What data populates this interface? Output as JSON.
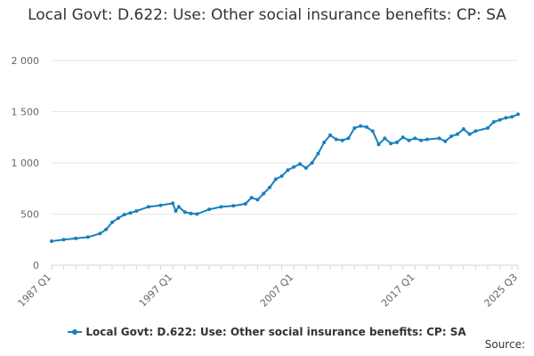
{
  "title": "Local Govt: D.622: Use: Other social insurance benefits: CP: SA",
  "source_label": "Source:",
  "chart_data": {
    "type": "line",
    "title": "Local Govt: D.622: Use: Other social insurance benefits: CP: SA",
    "xlabel": "",
    "ylabel": "",
    "ylim": [
      0,
      2000
    ],
    "y_ticks": [
      0,
      500,
      1000,
      1500,
      2000
    ],
    "y_tick_labels": [
      "0",
      "500",
      "1 000",
      "1 500",
      "2 000"
    ],
    "x_range": [
      "1987 Q1",
      "2025 Q3"
    ],
    "x_tick_labels": [
      "1987 Q1",
      "1997 Q1",
      "2007 Q1",
      "2017 Q1",
      "2025 Q3"
    ],
    "grid": "horizontal",
    "legend_position": "bottom",
    "series": [
      {
        "name": "Local Govt: D.622: Use: Other social insurance benefits: CP: SA",
        "color": "#1780bd",
        "points": [
          [
            "1987 Q1",
            235
          ],
          [
            "1988 Q1",
            250
          ],
          [
            "1989 Q1",
            262
          ],
          [
            "1990 Q1",
            275
          ],
          [
            "1991 Q1",
            310
          ],
          [
            "1991 Q3",
            350
          ],
          [
            "1992 Q1",
            420
          ],
          [
            "1992 Q3",
            460
          ],
          [
            "1993 Q1",
            495
          ],
          [
            "1993 Q3",
            510
          ],
          [
            "1994 Q1",
            530
          ],
          [
            "1995 Q1",
            570
          ],
          [
            "1996 Q1",
            585
          ],
          [
            "1997 Q1",
            605
          ],
          [
            "1997 Q2",
            530
          ],
          [
            "1997 Q3",
            570
          ],
          [
            "1998 Q1",
            520
          ],
          [
            "1998 Q3",
            505
          ],
          [
            "1999 Q1",
            500
          ],
          [
            "2000 Q1",
            545
          ],
          [
            "2001 Q1",
            570
          ],
          [
            "2002 Q1",
            580
          ],
          [
            "2003 Q1",
            600
          ],
          [
            "2003 Q3",
            660
          ],
          [
            "2004 Q1",
            640
          ],
          [
            "2004 Q3",
            700
          ],
          [
            "2005 Q1",
            760
          ],
          [
            "2005 Q3",
            840
          ],
          [
            "2006 Q1",
            870
          ],
          [
            "2006 Q3",
            930
          ],
          [
            "2007 Q1",
            960
          ],
          [
            "2007 Q3",
            990
          ],
          [
            "2008 Q1",
            950
          ],
          [
            "2008 Q3",
            1000
          ],
          [
            "2009 Q1",
            1090
          ],
          [
            "2009 Q3",
            1200
          ],
          [
            "2010 Q1",
            1270
          ],
          [
            "2010 Q3",
            1230
          ],
          [
            "2011 Q1",
            1220
          ],
          [
            "2011 Q3",
            1240
          ],
          [
            "2012 Q1",
            1340
          ],
          [
            "2012 Q3",
            1360
          ],
          [
            "2013 Q1",
            1350
          ],
          [
            "2013 Q3",
            1310
          ],
          [
            "2014 Q1",
            1180
          ],
          [
            "2014 Q3",
            1240
          ],
          [
            "2015 Q1",
            1190
          ],
          [
            "2015 Q3",
            1200
          ],
          [
            "2016 Q1",
            1250
          ],
          [
            "2016 Q3",
            1220
          ],
          [
            "2017 Q1",
            1240
          ],
          [
            "2017 Q3",
            1220
          ],
          [
            "2018 Q1",
            1230
          ],
          [
            "2019 Q1",
            1240
          ],
          [
            "2019 Q3",
            1210
          ],
          [
            "2020 Q1",
            1260
          ],
          [
            "2020 Q3",
            1280
          ],
          [
            "2021 Q1",
            1330
          ],
          [
            "2021 Q3",
            1280
          ],
          [
            "2022 Q1",
            1310
          ],
          [
            "2023 Q1",
            1340
          ],
          [
            "2023 Q3",
            1400
          ],
          [
            "2024 Q1",
            1420
          ],
          [
            "2024 Q3",
            1440
          ],
          [
            "2025 Q1",
            1450
          ],
          [
            "2025 Q3",
            1475
          ]
        ]
      }
    ]
  }
}
